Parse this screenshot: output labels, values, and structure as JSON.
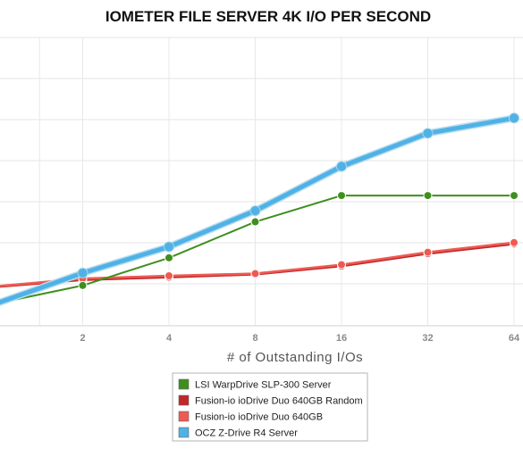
{
  "chart_data": {
    "type": "line",
    "title": "IOMETER FILE SERVER 4K I/O PER SECOND",
    "xlabel": "# of Outstanding I/Os",
    "ylabel": "",
    "x_ticks": [
      "2",
      "4",
      "8",
      "16",
      "32",
      "64"
    ],
    "x_scale": "log2",
    "xlim": [
      1,
      64
    ],
    "grid": true,
    "legend_position": "bottom-center",
    "series": [
      {
        "name": "LSI WarpDrive SLP-300 Server",
        "color": "#3f8f1f",
        "x": [
          1,
          2,
          4,
          8,
          16,
          32,
          64
        ],
        "y": [
          0.0,
          0.65,
          1.65,
          2.95,
          3.9,
          3.9,
          3.9
        ]
      },
      {
        "name": "Fusion-io ioDrive Duo 640GB Random",
        "color": "#c0282a",
        "x": [
          1,
          2,
          4,
          8,
          16,
          32,
          64
        ],
        "y": [
          0.6,
          0.85,
          0.95,
          1.05,
          1.35,
          1.8,
          2.15
        ]
      },
      {
        "name": "Fusion-io ioDrive Duo 640GB",
        "color": "#ee5a52",
        "x": [
          1,
          2,
          4,
          8,
          16,
          32,
          64
        ],
        "y": [
          0.62,
          0.9,
          1.0,
          1.08,
          1.4,
          1.85,
          2.2
        ]
      },
      {
        "name": "OCZ Z-Drive R4 Server",
        "color": "#4fb2e6",
        "x": [
          1,
          2,
          4,
          8,
          16,
          32,
          64
        ],
        "y": [
          0.0,
          1.1,
          2.05,
          3.35,
          4.95,
          6.15,
          6.7
        ]
      }
    ]
  }
}
